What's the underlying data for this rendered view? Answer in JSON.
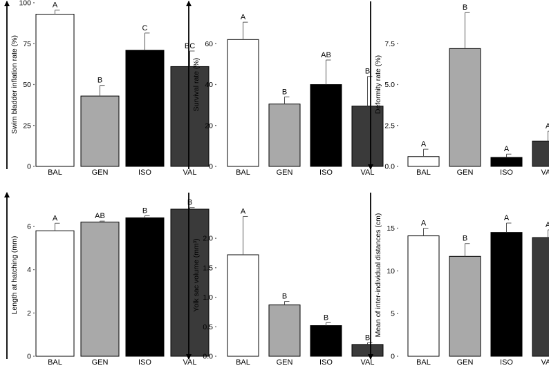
{
  "colors": {
    "BAL": "#ffffff",
    "GEN": "#a9a9a9",
    "ISO": "#000000",
    "VAL": "#3a3a3a",
    "axis": "#000000",
    "outline": "#000000"
  },
  "chart_data": [
    {
      "type": "bar",
      "ylabel": "Swim bladder inflation rate (%)",
      "categories": [
        "BAL",
        "GEN",
        "ISO",
        "VAL"
      ],
      "values": [
        93,
        43,
        71,
        61
      ],
      "errors": [
        2.5,
        6.5,
        10.5,
        9.5
      ],
      "letters": [
        "A",
        "B",
        "C",
        "BC"
      ],
      "ylim": [
        0,
        100
      ],
      "yticks": [
        "0",
        "25",
        "50",
        "75",
        "100"
      ],
      "ytick_values": [
        0,
        25,
        50,
        75,
        100
      ],
      "arrow": "up"
    },
    {
      "type": "bar",
      "ylabel": "Survival rate (%)",
      "categories": [
        "BAL",
        "GEN",
        "ISO",
        "VAL"
      ],
      "values": [
        62,
        30.5,
        40,
        29.5
      ],
      "errors": [
        8.5,
        3.5,
        12,
        14.5
      ],
      "letters": [
        "A",
        "B",
        "AB",
        "B"
      ],
      "ylim": [
        0,
        80
      ],
      "yticks": [
        "0",
        "20",
        "40",
        "60"
      ],
      "ytick_values": [
        0,
        20,
        40,
        60
      ],
      "arrow": "up"
    },
    {
      "type": "bar",
      "ylabel": "Deformity rate (%)",
      "categories": [
        "BAL",
        "GEN",
        "ISO",
        "VAL"
      ],
      "values": [
        0.6,
        7.2,
        0.55,
        1.55
      ],
      "errors": [
        0.45,
        2.2,
        0.2,
        0.6
      ],
      "letters": [
        "A",
        "B",
        "A",
        "A"
      ],
      "ylim": [
        0,
        10
      ],
      "yticks": [
        "0.0",
        "2.5",
        "5.0",
        "7.5"
      ],
      "ytick_values": [
        0,
        2.5,
        5,
        7.5
      ],
      "arrow": "down"
    },
    {
      "type": "bar",
      "ylabel": "Length at hatching (mm)",
      "categories": [
        "BAL",
        "GEN",
        "ISO",
        "VAL"
      ],
      "values": [
        5.8,
        6.2,
        6.4,
        6.8
      ],
      "errors": [
        0.35,
        0.05,
        0.1,
        0.07
      ],
      "letters": [
        "A",
        "AB",
        "B",
        "B"
      ],
      "ylim": [
        0,
        7.5
      ],
      "yticks": [
        "0",
        "2",
        "4",
        "6"
      ],
      "ytick_values": [
        0,
        2,
        4,
        6
      ],
      "arrow": "up"
    },
    {
      "type": "bar",
      "ylabel": "Yolk sac volume (mm³)",
      "categories": [
        "BAL",
        "GEN",
        "ISO",
        "VAL"
      ],
      "values": [
        1.72,
        0.87,
        0.52,
        0.2
      ],
      "errors": [
        0.65,
        0.06,
        0.05,
        0.03
      ],
      "letters": [
        "A",
        "B",
        "B",
        "B"
      ],
      "ylim": [
        0,
        2.75
      ],
      "yticks": [
        "0.0",
        "0.5",
        "1.0",
        "1.5",
        "2.0"
      ],
      "ytick_values": [
        0,
        0.5,
        1,
        1.5,
        2
      ],
      "arrow": "down"
    },
    {
      "type": "bar",
      "ylabel": "Mean of inter-individual distances (cm)",
      "categories": [
        "BAL",
        "GEN",
        "ISO",
        "VAL"
      ],
      "values": [
        14.1,
        11.7,
        14.5,
        13.9
      ],
      "errors": [
        0.9,
        1.5,
        1.1,
        0.9
      ],
      "letters": [
        "A",
        "B",
        "A",
        "A"
      ],
      "ylim": [
        0,
        19
      ],
      "yticks": [
        "0",
        "5",
        "10",
        "15"
      ],
      "ytick_values": [
        0,
        5,
        10,
        15
      ],
      "arrow": "down"
    }
  ]
}
